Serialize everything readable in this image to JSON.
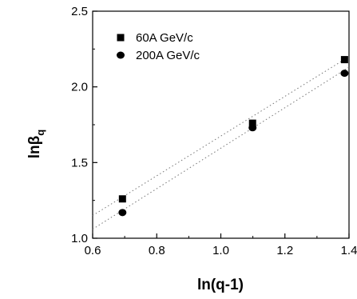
{
  "chart_data": {
    "type": "scatter",
    "xlabel": "ln(q-1)",
    "ylabel_main": "lnβ",
    "ylabel_sub": "q",
    "xlim": [
      0.6,
      1.4
    ],
    "ylim": [
      1.0,
      2.5
    ],
    "xticks": [
      "0.6",
      "0.8",
      "1.0",
      "1.2",
      "1.4"
    ],
    "yticks": [
      "1.0",
      "1.5",
      "2.0",
      "2.5"
    ],
    "legend_position": "top-left",
    "series": [
      {
        "name": "60A GeV/c",
        "marker": "square",
        "x": [
          0.693,
          1.099,
          1.386
        ],
        "y": [
          1.26,
          1.76,
          2.18
        ],
        "fit": {
          "x": [
            0.6,
            1.4
          ],
          "y": [
            1.15,
            2.2
          ]
        }
      },
      {
        "name": "200A GeV/c",
        "marker": "circle",
        "x": [
          0.693,
          1.099,
          1.386
        ],
        "y": [
          1.17,
          1.73,
          2.09
        ],
        "fit": {
          "x": [
            0.6,
            1.4
          ],
          "y": [
            1.06,
            2.13
          ]
        }
      }
    ]
  }
}
